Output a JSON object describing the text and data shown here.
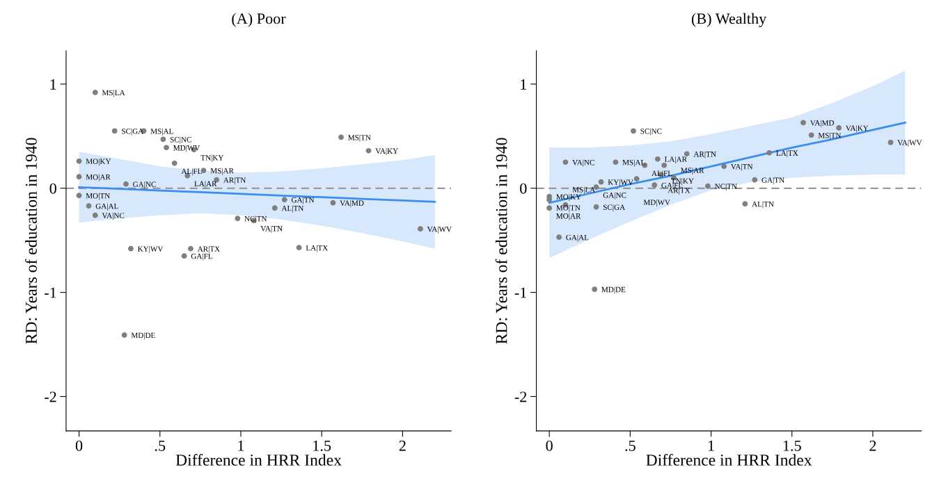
{
  "chart_data": [
    {
      "type": "scatter",
      "title": "(A) Poor",
      "xlabel": "Difference in HRR Index",
      "ylabel": "RD: Years of education in 1940",
      "xlim": [
        -0.08,
        2.3
      ],
      "ylim": [
        -2.33,
        1.32
      ],
      "xticks": [
        0,
        {
          "value": 0.5,
          "label": ".5"
        },
        1,
        1.5,
        2
      ],
      "yticks": [
        -2,
        -1,
        0,
        1
      ],
      "grid": false,
      "ref_lines": [
        {
          "axis": "y",
          "value": 0,
          "color": "#999999",
          "line_style": "dashed"
        }
      ],
      "series": [
        {
          "marker": "circle",
          "color": "#7f7f7f",
          "x": [
            0.1,
            0.22,
            0.4,
            0.52,
            0.54,
            0.71,
            0,
            0.59,
            0.77,
            0.67,
            0.85,
            0,
            0.29,
            0,
            0.06,
            0.1,
            1.62,
            1.79,
            1.27,
            1.57,
            1.21,
            0.98,
            1.08,
            2.11,
            0.32,
            0.69,
            0.65,
            1.36,
            0.28
          ],
          "values": [
            0.92,
            0.55,
            0.55,
            0.47,
            0.39,
            0.37,
            0.26,
            0.24,
            0.17,
            0.12,
            0.08,
            0.11,
            0.04,
            -0.07,
            -0.17,
            -0.26,
            0.49,
            0.36,
            -0.11,
            -0.14,
            -0.19,
            -0.29,
            -0.31,
            -0.39,
            -0.58,
            -0.58,
            -0.65,
            -0.57,
            -1.41
          ]
        },
        {
          "type": "line",
          "color": "#3b8ef0",
          "x": [
            0,
            0.25,
            0.5,
            0.75,
            1,
            1.25,
            1.5,
            1.75,
            2,
            2.2
          ],
          "values": [
            0.01,
            -0.006,
            -0.022,
            -0.038,
            -0.054,
            -0.07,
            -0.086,
            -0.102,
            -0.118,
            -0.13
          ],
          "lower": [
            -0.33,
            -0.29,
            -0.26,
            -0.24,
            -0.26,
            -0.3,
            -0.36,
            -0.43,
            -0.51,
            -0.58
          ],
          "upper": [
            0.35,
            0.28,
            0.21,
            0.17,
            0.15,
            0.16,
            0.19,
            0.23,
            0.27,
            0.32
          ],
          "marker": "none"
        }
      ],
      "annotations": [
        {
          "text": "MS|LA",
          "x": 0.1,
          "y": 0.92
        },
        {
          "text": "SC|GA",
          "x": 0.22,
          "y": 0.55
        },
        {
          "text": "MS|AL",
          "x": 0.4,
          "y": 0.55
        },
        {
          "text": "SC|NC",
          "x": 0.52,
          "y": 0.47
        },
        {
          "text": "MD|WV",
          "x": 0.54,
          "y": 0.39
        },
        {
          "text": "TN|KY",
          "x": 0.71,
          "y": 0.37
        },
        {
          "text": "MO|KY",
          "x": 0,
          "y": 0.26
        },
        {
          "text": "AL|FL",
          "x": 0.59,
          "y": 0.24
        },
        {
          "text": "MS|AR",
          "x": 0.77,
          "y": 0.17
        },
        {
          "text": "LA|AR",
          "x": 0.67,
          "y": 0.12
        },
        {
          "text": "AR|TN",
          "x": 0.85,
          "y": 0.08
        },
        {
          "text": "MO|AR",
          "x": 0,
          "y": 0.11
        },
        {
          "text": "GA|NC",
          "x": 0.29,
          "y": 0.04
        },
        {
          "text": "MO|TN",
          "x": 0,
          "y": -0.07
        },
        {
          "text": "GA|AL",
          "x": 0.06,
          "y": -0.17
        },
        {
          "text": "VA|NC",
          "x": 0.1,
          "y": -0.26
        },
        {
          "text": "MS|TN",
          "x": 1.62,
          "y": 0.49
        },
        {
          "text": "VA|KY",
          "x": 1.79,
          "y": 0.36
        },
        {
          "text": "GA|TN",
          "x": 1.27,
          "y": -0.11
        },
        {
          "text": "VA|MD",
          "x": 1.57,
          "y": -0.14
        },
        {
          "text": "AL|TN",
          "x": 1.21,
          "y": -0.19
        },
        {
          "text": "NC|TN",
          "x": 0.98,
          "y": -0.29
        },
        {
          "text": "VA|TN",
          "x": 1.08,
          "y": -0.31
        },
        {
          "text": "VA|WV",
          "x": 2.11,
          "y": -0.39
        },
        {
          "text": "KY|WV",
          "x": 0.32,
          "y": -0.58
        },
        {
          "text": "AR|TX",
          "x": 0.69,
          "y": -0.58
        },
        {
          "text": "GA|FL",
          "x": 0.65,
          "y": -0.65
        },
        {
          "text": "LA|TX",
          "x": 1.36,
          "y": -0.57
        },
        {
          "text": "MD|DE",
          "x": 0.28,
          "y": -1.41
        }
      ]
    },
    {
      "type": "scatter",
      "title": "(B) Wealthy",
      "xlabel": "Difference in HRR Index",
      "ylabel": "RD: Years of education in 1940",
      "xlim": [
        -0.08,
        2.3
      ],
      "ylim": [
        -2.33,
        1.32
      ],
      "xticks": [
        0,
        {
          "value": 0.5,
          "label": ".5"
        },
        1,
        1.5,
        2
      ],
      "yticks": [
        -2,
        -1,
        0,
        1
      ],
      "grid": false,
      "ref_lines": [
        {
          "axis": "y",
          "value": 0,
          "color": "#999999",
          "line_style": "dashed"
        }
      ],
      "series": [
        {
          "marker": "circle",
          "color": "#7f7f7f",
          "x": [
            0.52,
            1.57,
            1.79,
            1.62,
            2.11,
            1.36,
            0.85,
            0.67,
            0.1,
            0.41,
            0.59,
            0.71,
            1.08,
            0.69,
            0.77,
            0.54,
            1.27,
            0.32,
            0.65,
            0.29,
            0.98,
            0,
            0,
            0.1,
            0.29,
            0,
            1.21,
            0.06,
            0.28
          ],
          "values": [
            0.55,
            0.63,
            0.58,
            0.51,
            0.44,
            0.34,
            0.33,
            0.28,
            0.25,
            0.25,
            0.22,
            0.22,
            0.21,
            0.13,
            0.1,
            0.09,
            0.08,
            0.06,
            0.03,
            0.01,
            0.02,
            -0.08,
            -0.11,
            -0.16,
            -0.18,
            -0.19,
            -0.15,
            -0.47,
            -0.97
          ]
        },
        {
          "type": "line",
          "color": "#3b8ef0",
          "x": [
            0,
            0.25,
            0.5,
            0.75,
            1,
            1.25,
            1.5,
            1.75,
            2,
            2.2
          ],
          "values": [
            -0.14,
            -0.05,
            0.04,
            0.12,
            0.21,
            0.3,
            0.39,
            0.47,
            0.56,
            0.63
          ],
          "lower": [
            -0.67,
            -0.49,
            -0.32,
            -0.16,
            -0.02,
            0.06,
            0.1,
            0.12,
            0.13,
            0.13
          ],
          "upper": [
            0.39,
            0.39,
            0.41,
            0.45,
            0.52,
            0.6,
            0.68,
            0.82,
            0.98,
            1.13
          ],
          "marker": "none"
        }
      ],
      "annotations": [
        {
          "text": "SC|NC",
          "x": 0.52,
          "y": 0.55
        },
        {
          "text": "VA|MD",
          "x": 1.57,
          "y": 0.63
        },
        {
          "text": "VA|KY",
          "x": 1.79,
          "y": 0.58
        },
        {
          "text": "MS|TN",
          "x": 1.62,
          "y": 0.51
        },
        {
          "text": "VA|WV",
          "x": 2.11,
          "y": 0.44
        },
        {
          "text": "LA|TX",
          "x": 1.36,
          "y": 0.34
        },
        {
          "text": "AR|TN",
          "x": 0.85,
          "y": 0.33
        },
        {
          "text": "LA|AR",
          "x": 0.67,
          "y": 0.28
        },
        {
          "text": "VA|NC",
          "x": 0.1,
          "y": 0.25
        },
        {
          "text": "MS|AL",
          "x": 0.41,
          "y": 0.25
        },
        {
          "text": "AL|FL",
          "x": 0.59,
          "y": 0.22
        },
        {
          "text": "TN|KY",
          "x": 0.71,
          "y": 0.22
        },
        {
          "text": "VA|TN",
          "x": 1.08,
          "y": 0.21
        },
        {
          "text": "AR|TX",
          "x": 0.69,
          "y": 0.13
        },
        {
          "text": "MS|AR",
          "x": 0.77,
          "y": 0.1
        },
        {
          "text": "MD|WV",
          "x": 0.54,
          "y": 0.09
        },
        {
          "text": "GA|TN",
          "x": 1.27,
          "y": 0.08
        },
        {
          "text": "KY|WV",
          "x": 0.32,
          "y": 0.06
        },
        {
          "text": "GA|FL",
          "x": 0.65,
          "y": 0.03
        },
        {
          "text": "GA|NC",
          "x": 0.29,
          "y": 0.01
        },
        {
          "text": "NC|TN",
          "x": 0.98,
          "y": 0.02
        },
        {
          "text": "MO|KY",
          "x": 0,
          "y": -0.08
        },
        {
          "text": "MO|TN",
          "x": 0,
          "y": -0.11
        },
        {
          "text": "MS|LA",
          "x": 0.1,
          "y": -0.16
        },
        {
          "text": "SC|GA",
          "x": 0.29,
          "y": -0.18
        },
        {
          "text": "MO|AR",
          "x": 0,
          "y": -0.19
        },
        {
          "text": "AL|TN",
          "x": 1.21,
          "y": -0.15
        },
        {
          "text": "GA|AL",
          "x": 0.06,
          "y": -0.47
        },
        {
          "text": "MD|DE",
          "x": 0.28,
          "y": -0.97
        }
      ]
    }
  ]
}
